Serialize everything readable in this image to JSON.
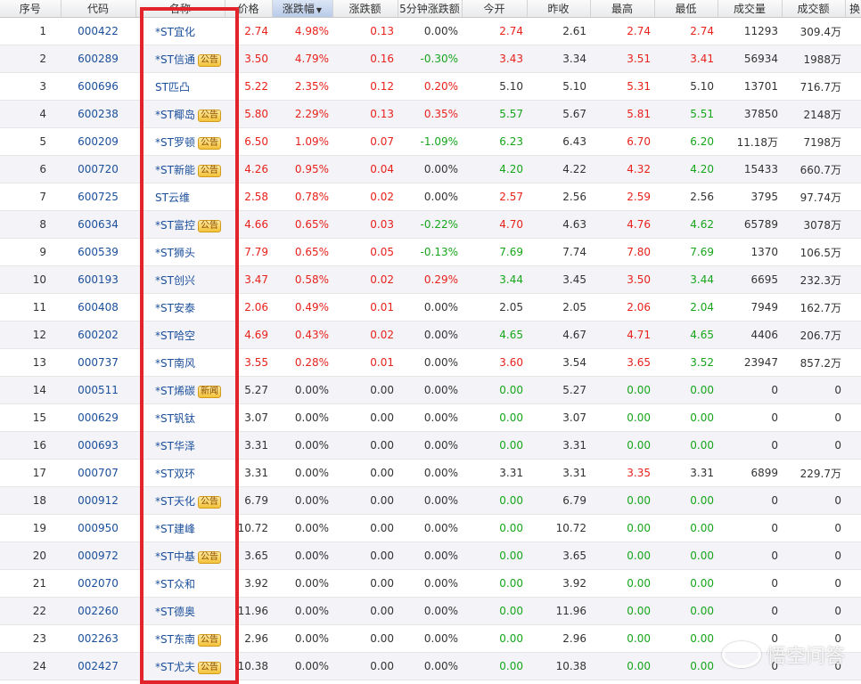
{
  "columns": [
    {
      "key": "idx",
      "label": "序号"
    },
    {
      "key": "code",
      "label": "代码"
    },
    {
      "key": "name",
      "label": "名称"
    },
    {
      "key": "price",
      "label": "价格"
    },
    {
      "key": "pct",
      "label": "涨跌幅",
      "sorted": true
    },
    {
      "key": "chg",
      "label": "涨跌额"
    },
    {
      "key": "chg5",
      "label": "5分钟涨跌额"
    },
    {
      "key": "open",
      "label": "今开"
    },
    {
      "key": "prev",
      "label": "昨收"
    },
    {
      "key": "high",
      "label": "最高"
    },
    {
      "key": "low",
      "label": "最低"
    },
    {
      "key": "vol",
      "label": "成交量"
    },
    {
      "key": "amt",
      "label": "成交额"
    },
    {
      "key": "turn",
      "label": "换"
    }
  ],
  "badge_labels": {
    "notice": "公告",
    "news": "新闻"
  },
  "colors": {
    "up": "#e8211b",
    "down": "#16a51b",
    "link": "#1b4f9b",
    "highlight": "#e2232c"
  },
  "rows": [
    {
      "idx": "1",
      "code": "000422",
      "name": "*ST宜化",
      "badge": "",
      "price": "2.74",
      "pct": "4.98%",
      "chg": "0.13",
      "chg5": "0.00%",
      "open": "2.74",
      "prev": "2.61",
      "high": "2.74",
      "low": "2.74",
      "vol": "11293",
      "amt": "309.4万",
      "c": {
        "price": "pos",
        "pct": "pos",
        "chg": "pos",
        "chg5": "flat",
        "open": "pos",
        "high": "pos",
        "low": "pos"
      }
    },
    {
      "idx": "2",
      "code": "600289",
      "name": "*ST信通",
      "badge": "notice",
      "price": "3.50",
      "pct": "4.79%",
      "chg": "0.16",
      "chg5": "-0.30%",
      "open": "3.43",
      "prev": "3.34",
      "high": "3.51",
      "low": "3.41",
      "vol": "56934",
      "amt": "1988万",
      "c": {
        "price": "pos",
        "pct": "pos",
        "chg": "pos",
        "chg5": "neg",
        "open": "pos",
        "high": "pos",
        "low": "pos"
      }
    },
    {
      "idx": "3",
      "code": "600696",
      "name": "ST匹凸",
      "badge": "",
      "price": "5.22",
      "pct": "2.35%",
      "chg": "0.12",
      "chg5": "0.20%",
      "open": "5.10",
      "prev": "5.10",
      "high": "5.31",
      "low": "5.10",
      "vol": "13701",
      "amt": "716.7万",
      "c": {
        "price": "pos",
        "pct": "pos",
        "chg": "pos",
        "chg5": "pos",
        "open": "flat",
        "high": "pos",
        "low": "flat"
      }
    },
    {
      "idx": "4",
      "code": "600238",
      "name": "*ST椰岛",
      "badge": "notice",
      "price": "5.80",
      "pct": "2.29%",
      "chg": "0.13",
      "chg5": "0.35%",
      "open": "5.57",
      "prev": "5.67",
      "high": "5.81",
      "low": "5.51",
      "vol": "37850",
      "amt": "2148万",
      "c": {
        "price": "pos",
        "pct": "pos",
        "chg": "pos",
        "chg5": "pos",
        "open": "neg",
        "high": "pos",
        "low": "neg"
      }
    },
    {
      "idx": "5",
      "code": "600209",
      "name": "*ST罗顿",
      "badge": "notice",
      "price": "6.50",
      "pct": "1.09%",
      "chg": "0.07",
      "chg5": "-1.09%",
      "open": "6.23",
      "prev": "6.43",
      "high": "6.70",
      "low": "6.20",
      "vol": "11.18万",
      "amt": "7198万",
      "c": {
        "price": "pos",
        "pct": "pos",
        "chg": "pos",
        "chg5": "neg",
        "open": "neg",
        "high": "pos",
        "low": "neg"
      }
    },
    {
      "idx": "6",
      "code": "000720",
      "name": "*ST新能",
      "badge": "notice",
      "price": "4.26",
      "pct": "0.95%",
      "chg": "0.04",
      "chg5": "0.00%",
      "open": "4.20",
      "prev": "4.22",
      "high": "4.32",
      "low": "4.20",
      "vol": "15433",
      "amt": "660.7万",
      "c": {
        "price": "pos",
        "pct": "pos",
        "chg": "pos",
        "chg5": "flat",
        "open": "neg",
        "high": "pos",
        "low": "neg"
      }
    },
    {
      "idx": "7",
      "code": "600725",
      "name": "ST云维",
      "badge": "",
      "price": "2.58",
      "pct": "0.78%",
      "chg": "0.02",
      "chg5": "0.00%",
      "open": "2.57",
      "prev": "2.56",
      "high": "2.59",
      "low": "2.56",
      "vol": "3795",
      "amt": "97.74万",
      "c": {
        "price": "pos",
        "pct": "pos",
        "chg": "pos",
        "chg5": "flat",
        "open": "pos",
        "high": "pos",
        "low": "flat"
      }
    },
    {
      "idx": "8",
      "code": "600634",
      "name": "*ST富控",
      "badge": "notice",
      "price": "4.66",
      "pct": "0.65%",
      "chg": "0.03",
      "chg5": "-0.22%",
      "open": "4.70",
      "prev": "4.63",
      "high": "4.76",
      "low": "4.62",
      "vol": "65789",
      "amt": "3078万",
      "c": {
        "price": "pos",
        "pct": "pos",
        "chg": "pos",
        "chg5": "neg",
        "open": "pos",
        "high": "pos",
        "low": "neg"
      }
    },
    {
      "idx": "9",
      "code": "600539",
      "name": "*ST狮头",
      "badge": "",
      "price": "7.79",
      "pct": "0.65%",
      "chg": "0.05",
      "chg5": "-0.13%",
      "open": "7.69",
      "prev": "7.74",
      "high": "7.80",
      "low": "7.69",
      "vol": "1370",
      "amt": "106.5万",
      "c": {
        "price": "pos",
        "pct": "pos",
        "chg": "pos",
        "chg5": "neg",
        "open": "neg",
        "high": "pos",
        "low": "neg"
      }
    },
    {
      "idx": "10",
      "code": "600193",
      "name": "*ST创兴",
      "badge": "",
      "price": "3.47",
      "pct": "0.58%",
      "chg": "0.02",
      "chg5": "0.29%",
      "open": "3.44",
      "prev": "3.45",
      "high": "3.50",
      "low": "3.44",
      "vol": "6695",
      "amt": "232.3万",
      "c": {
        "price": "pos",
        "pct": "pos",
        "chg": "pos",
        "chg5": "pos",
        "open": "neg",
        "high": "pos",
        "low": "neg"
      }
    },
    {
      "idx": "11",
      "code": "600408",
      "name": "*ST安泰",
      "badge": "",
      "price": "2.06",
      "pct": "0.49%",
      "chg": "0.01",
      "chg5": "0.00%",
      "open": "2.05",
      "prev": "2.05",
      "high": "2.06",
      "low": "2.04",
      "vol": "7949",
      "amt": "162.7万",
      "c": {
        "price": "pos",
        "pct": "pos",
        "chg": "pos",
        "chg5": "flat",
        "open": "flat",
        "high": "pos",
        "low": "neg"
      }
    },
    {
      "idx": "12",
      "code": "600202",
      "name": "*ST哈空",
      "badge": "",
      "price": "4.69",
      "pct": "0.43%",
      "chg": "0.02",
      "chg5": "0.00%",
      "open": "4.65",
      "prev": "4.67",
      "high": "4.71",
      "low": "4.65",
      "vol": "4406",
      "amt": "206.7万",
      "c": {
        "price": "pos",
        "pct": "pos",
        "chg": "pos",
        "chg5": "flat",
        "open": "neg",
        "high": "pos",
        "low": "neg"
      }
    },
    {
      "idx": "13",
      "code": "000737",
      "name": "*ST南风",
      "badge": "",
      "price": "3.55",
      "pct": "0.28%",
      "chg": "0.01",
      "chg5": "0.00%",
      "open": "3.60",
      "prev": "3.54",
      "high": "3.65",
      "low": "3.52",
      "vol": "23947",
      "amt": "857.2万",
      "c": {
        "price": "pos",
        "pct": "pos",
        "chg": "pos",
        "chg5": "flat",
        "open": "pos",
        "high": "pos",
        "low": "neg"
      }
    },
    {
      "idx": "14",
      "code": "000511",
      "name": "*ST烯碳",
      "badge": "news",
      "price": "5.27",
      "pct": "0.00%",
      "chg": "0.00",
      "chg5": "0.00%",
      "open": "0.00",
      "prev": "5.27",
      "high": "0.00",
      "low": "0.00",
      "vol": "0",
      "amt": "0",
      "c": {
        "price": "flat",
        "pct": "flat",
        "chg": "flat",
        "chg5": "flat",
        "open": "neg",
        "high": "neg",
        "low": "neg"
      }
    },
    {
      "idx": "15",
      "code": "000629",
      "name": "*ST钒钛",
      "badge": "",
      "price": "3.07",
      "pct": "0.00%",
      "chg": "0.00",
      "chg5": "0.00%",
      "open": "0.00",
      "prev": "3.07",
      "high": "0.00",
      "low": "0.00",
      "vol": "0",
      "amt": "0",
      "c": {
        "price": "flat",
        "pct": "flat",
        "chg": "flat",
        "chg5": "flat",
        "open": "neg",
        "high": "neg",
        "low": "neg"
      }
    },
    {
      "idx": "16",
      "code": "000693",
      "name": "*ST华泽",
      "badge": "",
      "price": "3.31",
      "pct": "0.00%",
      "chg": "0.00",
      "chg5": "0.00%",
      "open": "0.00",
      "prev": "3.31",
      "high": "0.00",
      "low": "0.00",
      "vol": "0",
      "amt": "0",
      "c": {
        "price": "flat",
        "pct": "flat",
        "chg": "flat",
        "chg5": "flat",
        "open": "neg",
        "high": "neg",
        "low": "neg"
      }
    },
    {
      "idx": "17",
      "code": "000707",
      "name": "*ST双环",
      "badge": "",
      "price": "3.31",
      "pct": "0.00%",
      "chg": "0.00",
      "chg5": "0.00%",
      "open": "3.31",
      "prev": "3.31",
      "high": "3.35",
      "low": "3.31",
      "vol": "6899",
      "amt": "229.7万",
      "c": {
        "price": "flat",
        "pct": "flat",
        "chg": "flat",
        "chg5": "flat",
        "open": "flat",
        "high": "pos",
        "low": "flat"
      }
    },
    {
      "idx": "18",
      "code": "000912",
      "name": "*ST天化",
      "badge": "notice",
      "price": "6.79",
      "pct": "0.00%",
      "chg": "0.00",
      "chg5": "0.00%",
      "open": "0.00",
      "prev": "6.79",
      "high": "0.00",
      "low": "0.00",
      "vol": "0",
      "amt": "0",
      "c": {
        "price": "flat",
        "pct": "flat",
        "chg": "flat",
        "chg5": "flat",
        "open": "neg",
        "high": "neg",
        "low": "neg"
      }
    },
    {
      "idx": "19",
      "code": "000950",
      "name": "*ST建峰",
      "badge": "",
      "price": "10.72",
      "pct": "0.00%",
      "chg": "0.00",
      "chg5": "0.00%",
      "open": "0.00",
      "prev": "10.72",
      "high": "0.00",
      "low": "0.00",
      "vol": "0",
      "amt": "0",
      "c": {
        "price": "flat",
        "pct": "flat",
        "chg": "flat",
        "chg5": "flat",
        "open": "neg",
        "high": "neg",
        "low": "neg"
      }
    },
    {
      "idx": "20",
      "code": "000972",
      "name": "*ST中基",
      "badge": "notice",
      "price": "3.65",
      "pct": "0.00%",
      "chg": "0.00",
      "chg5": "0.00%",
      "open": "0.00",
      "prev": "3.65",
      "high": "0.00",
      "low": "0.00",
      "vol": "0",
      "amt": "0",
      "c": {
        "price": "flat",
        "pct": "flat",
        "chg": "flat",
        "chg5": "flat",
        "open": "neg",
        "high": "neg",
        "low": "neg"
      }
    },
    {
      "idx": "21",
      "code": "002070",
      "name": "*ST众和",
      "badge": "",
      "price": "3.92",
      "pct": "0.00%",
      "chg": "0.00",
      "chg5": "0.00%",
      "open": "0.00",
      "prev": "3.92",
      "high": "0.00",
      "low": "0.00",
      "vol": "0",
      "amt": "0",
      "c": {
        "price": "flat",
        "pct": "flat",
        "chg": "flat",
        "chg5": "flat",
        "open": "neg",
        "high": "neg",
        "low": "neg"
      }
    },
    {
      "idx": "22",
      "code": "002260",
      "name": "*ST德奥",
      "badge": "",
      "price": "11.96",
      "pct": "0.00%",
      "chg": "0.00",
      "chg5": "0.00%",
      "open": "0.00",
      "prev": "11.96",
      "high": "0.00",
      "low": "0.00",
      "vol": "0",
      "amt": "0",
      "c": {
        "price": "flat",
        "pct": "flat",
        "chg": "flat",
        "chg5": "flat",
        "open": "neg",
        "high": "neg",
        "low": "neg"
      }
    },
    {
      "idx": "23",
      "code": "002263",
      "name": "*ST东南",
      "badge": "notice",
      "price": "2.96",
      "pct": "0.00%",
      "chg": "0.00",
      "chg5": "0.00%",
      "open": "0.00",
      "prev": "2.96",
      "high": "0.00",
      "low": "0.00",
      "vol": "0",
      "amt": "0",
      "c": {
        "price": "flat",
        "pct": "flat",
        "chg": "flat",
        "chg5": "flat",
        "open": "neg",
        "high": "neg",
        "low": "neg"
      }
    },
    {
      "idx": "24",
      "code": "002427",
      "name": "*ST尤夫",
      "badge": "notice",
      "price": "10.38",
      "pct": "0.00%",
      "chg": "0.00",
      "chg5": "0.00%",
      "open": "0.00",
      "prev": "10.38",
      "high": "0.00",
      "low": "0.00",
      "vol": "0",
      "amt": "0",
      "c": {
        "price": "flat",
        "pct": "flat",
        "chg": "flat",
        "chg5": "flat",
        "open": "neg",
        "high": "neg",
        "low": "neg"
      }
    }
  ],
  "watermark": "悟空问答"
}
